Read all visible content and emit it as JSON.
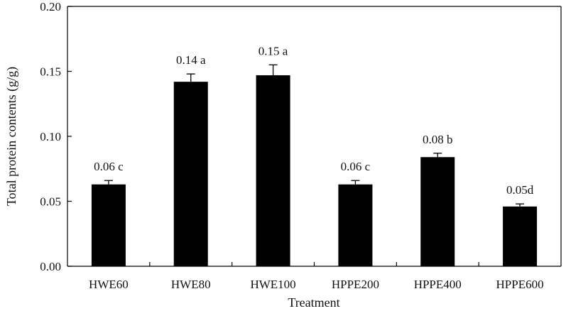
{
  "chart_data": {
    "type": "bar",
    "categories": [
      "HWE60",
      "HWE80",
      "HWE100",
      "HPPE200",
      "HPPE400",
      "HPPE600"
    ],
    "values": [
      0.063,
      0.142,
      0.147,
      0.063,
      0.084,
      0.046
    ],
    "errors": [
      0.003,
      0.006,
      0.008,
      0.003,
      0.003,
      0.002
    ],
    "data_labels": [
      "0.06 c",
      "0.14 a",
      "0.15 a",
      "0.06 c",
      "0.08 b",
      "0.05d"
    ],
    "xlabel": "Treatment",
    "ylabel": "Total  protein contents (g/g)",
    "ylim": [
      0,
      0.2
    ],
    "yticks": [
      "0.00",
      "0.05",
      "0.10",
      "0.15",
      "0.20"
    ],
    "bar_color": "#000000",
    "grid": false,
    "legend": "none"
  }
}
